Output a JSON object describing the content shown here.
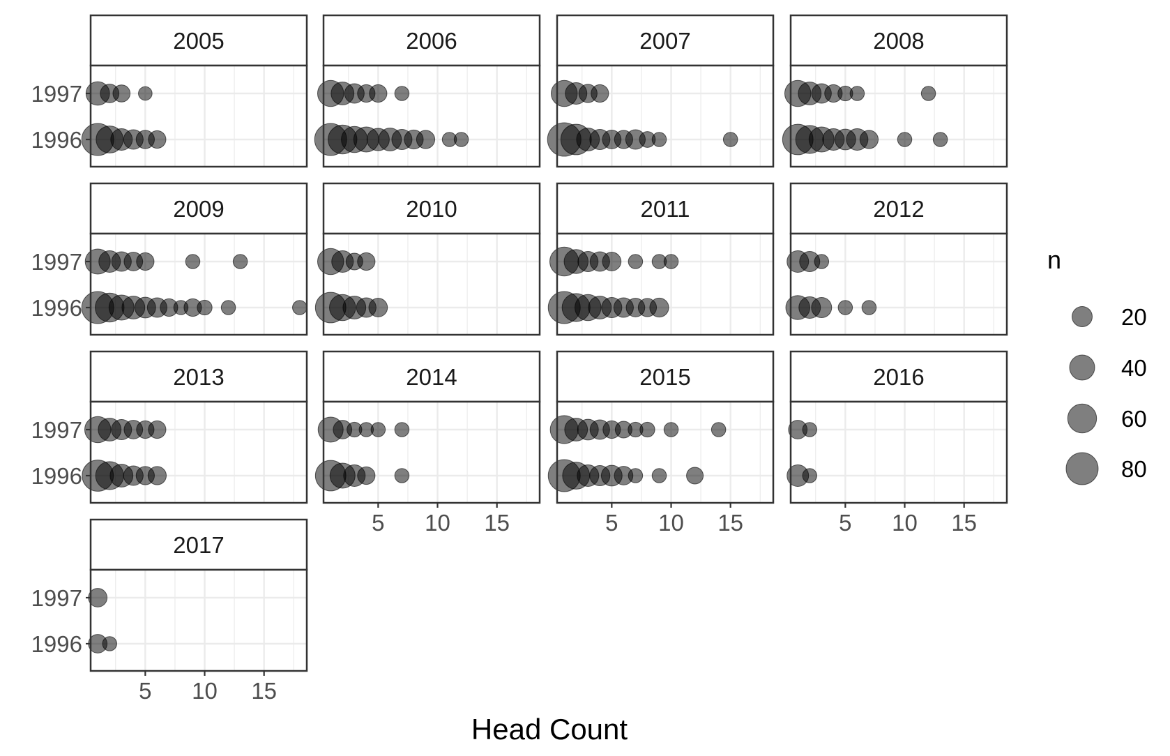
{
  "chart_data": {
    "type": "scatter",
    "xlabel": "Head Count",
    "ylabel": "",
    "x_ticks": [
      5,
      10,
      15
    ],
    "xlim": [
      0.4,
      18.6
    ],
    "y_categories": [
      "1996",
      "1997"
    ],
    "grid": true,
    "legend": {
      "title": "n",
      "placement": "right",
      "sizes": [
        20,
        40,
        60,
        80
      ],
      "labels": [
        "20",
        "40",
        "60",
        "80"
      ]
    },
    "colors": {
      "point": "#000000",
      "point_opacity": 0.5,
      "strip_bg": "#ffffff",
      "panel_border": "#333333",
      "grid": "#ebebeb"
    },
    "panels": [
      {
        "facet": "2005",
        "points": [
          {
            "y": "1997",
            "x": 1,
            "n": 33
          },
          {
            "y": "1997",
            "x": 2,
            "n": 15
          },
          {
            "y": "1997",
            "x": 3,
            "n": 11
          },
          {
            "y": "1997",
            "x": 5,
            "n": 4
          },
          {
            "y": "1996",
            "x": 1,
            "n": 80
          },
          {
            "y": "1996",
            "x": 2,
            "n": 50
          },
          {
            "y": "1996",
            "x": 3,
            "n": 25
          },
          {
            "y": "1996",
            "x": 4,
            "n": 18
          },
          {
            "y": "1996",
            "x": 5,
            "n": 14
          },
          {
            "y": "1996",
            "x": 6,
            "n": 12
          }
        ]
      },
      {
        "facet": "2006",
        "points": [
          {
            "y": "1997",
            "x": 1,
            "n": 45
          },
          {
            "y": "1997",
            "x": 2,
            "n": 30
          },
          {
            "y": "1997",
            "x": 3,
            "n": 18
          },
          {
            "y": "1997",
            "x": 4,
            "n": 12
          },
          {
            "y": "1997",
            "x": 5,
            "n": 12
          },
          {
            "y": "1997",
            "x": 7,
            "n": 5
          },
          {
            "y": "1996",
            "x": 1,
            "n": 80
          },
          {
            "y": "1996",
            "x": 2,
            "n": 60
          },
          {
            "y": "1996",
            "x": 3,
            "n": 45
          },
          {
            "y": "1996",
            "x": 4,
            "n": 40
          },
          {
            "y": "1996",
            "x": 5,
            "n": 28
          },
          {
            "y": "1996",
            "x": 6,
            "n": 30
          },
          {
            "y": "1996",
            "x": 7,
            "n": 20
          },
          {
            "y": "1996",
            "x": 8,
            "n": 16
          },
          {
            "y": "1996",
            "x": 9,
            "n": 14
          },
          {
            "y": "1996",
            "x": 11,
            "n": 5
          },
          {
            "y": "1996",
            "x": 12,
            "n": 5
          }
        ]
      },
      {
        "facet": "2007",
        "points": [
          {
            "y": "1997",
            "x": 1,
            "n": 45
          },
          {
            "y": "1997",
            "x": 2,
            "n": 25
          },
          {
            "y": "1997",
            "x": 3,
            "n": 14
          },
          {
            "y": "1997",
            "x": 4,
            "n": 12
          },
          {
            "y": "1996",
            "x": 1,
            "n": 90
          },
          {
            "y": "1996",
            "x": 2,
            "n": 70
          },
          {
            "y": "1996",
            "x": 3,
            "n": 30
          },
          {
            "y": "1996",
            "x": 4,
            "n": 20
          },
          {
            "y": "1996",
            "x": 5,
            "n": 15
          },
          {
            "y": "1996",
            "x": 6,
            "n": 14
          },
          {
            "y": "1996",
            "x": 7,
            "n": 18
          },
          {
            "y": "1996",
            "x": 8,
            "n": 8
          },
          {
            "y": "1996",
            "x": 9,
            "n": 5
          },
          {
            "y": "1996",
            "x": 15,
            "n": 5
          }
        ]
      },
      {
        "facet": "2008",
        "points": [
          {
            "y": "1997",
            "x": 1,
            "n": 45
          },
          {
            "y": "1997",
            "x": 2,
            "n": 30
          },
          {
            "y": "1997",
            "x": 3,
            "n": 18
          },
          {
            "y": "1997",
            "x": 4,
            "n": 12
          },
          {
            "y": "1997",
            "x": 5,
            "n": 6
          },
          {
            "y": "1997",
            "x": 6,
            "n": 5
          },
          {
            "y": "1997",
            "x": 12,
            "n": 5
          },
          {
            "y": "1996",
            "x": 1,
            "n": 70
          },
          {
            "y": "1996",
            "x": 2,
            "n": 55
          },
          {
            "y": "1996",
            "x": 3,
            "n": 40
          },
          {
            "y": "1996",
            "x": 4,
            "n": 25
          },
          {
            "y": "1996",
            "x": 5,
            "n": 22
          },
          {
            "y": "1996",
            "x": 6,
            "n": 25
          },
          {
            "y": "1996",
            "x": 7,
            "n": 14
          },
          {
            "y": "1996",
            "x": 10,
            "n": 5
          },
          {
            "y": "1996",
            "x": 13,
            "n": 5
          }
        ]
      },
      {
        "facet": "2009",
        "points": [
          {
            "y": "1997",
            "x": 1,
            "n": 40
          },
          {
            "y": "1997",
            "x": 2,
            "n": 25
          },
          {
            "y": "1997",
            "x": 3,
            "n": 18
          },
          {
            "y": "1997",
            "x": 4,
            "n": 15
          },
          {
            "y": "1997",
            "x": 5,
            "n": 12
          },
          {
            "y": "1997",
            "x": 9,
            "n": 5
          },
          {
            "y": "1997",
            "x": 13,
            "n": 5
          },
          {
            "y": "1996",
            "x": 1,
            "n": 80
          },
          {
            "y": "1996",
            "x": 2,
            "n": 60
          },
          {
            "y": "1996",
            "x": 3,
            "n": 40
          },
          {
            "y": "1996",
            "x": 4,
            "n": 30
          },
          {
            "y": "1996",
            "x": 5,
            "n": 22
          },
          {
            "y": "1996",
            "x": 6,
            "n": 18
          },
          {
            "y": "1996",
            "x": 7,
            "n": 12
          },
          {
            "y": "1996",
            "x": 8,
            "n": 5
          },
          {
            "y": "1996",
            "x": 9,
            "n": 12
          },
          {
            "y": "1996",
            "x": 10,
            "n": 6
          },
          {
            "y": "1996",
            "x": 12,
            "n": 5
          },
          {
            "y": "1996",
            "x": 18,
            "n": 5
          }
        ]
      },
      {
        "facet": "2010",
        "points": [
          {
            "y": "1997",
            "x": 1,
            "n": 45
          },
          {
            "y": "1997",
            "x": 2,
            "n": 25
          },
          {
            "y": "1997",
            "x": 3,
            "n": 10
          },
          {
            "y": "1997",
            "x": 4,
            "n": 12
          },
          {
            "y": "1996",
            "x": 1,
            "n": 70
          },
          {
            "y": "1996",
            "x": 2,
            "n": 45
          },
          {
            "y": "1996",
            "x": 3,
            "n": 30
          },
          {
            "y": "1996",
            "x": 4,
            "n": 18
          },
          {
            "y": "1996",
            "x": 5,
            "n": 15
          }
        ]
      },
      {
        "facet": "2011",
        "points": [
          {
            "y": "1997",
            "x": 1,
            "n": 60
          },
          {
            "y": "1997",
            "x": 2,
            "n": 35
          },
          {
            "y": "1997",
            "x": 3,
            "n": 20
          },
          {
            "y": "1997",
            "x": 4,
            "n": 18
          },
          {
            "y": "1997",
            "x": 5,
            "n": 15
          },
          {
            "y": "1997",
            "x": 7,
            "n": 5
          },
          {
            "y": "1997",
            "x": 9,
            "n": 5
          },
          {
            "y": "1997",
            "x": 10,
            "n": 5
          },
          {
            "y": "1996",
            "x": 1,
            "n": 80
          },
          {
            "y": "1996",
            "x": 2,
            "n": 55
          },
          {
            "y": "1996",
            "x": 3,
            "n": 45
          },
          {
            "y": "1996",
            "x": 4,
            "n": 30
          },
          {
            "y": "1996",
            "x": 5,
            "n": 20
          },
          {
            "y": "1996",
            "x": 6,
            "n": 18
          },
          {
            "y": "1996",
            "x": 7,
            "n": 15
          },
          {
            "y": "1996",
            "x": 8,
            "n": 14
          },
          {
            "y": "1996",
            "x": 9,
            "n": 16
          }
        ]
      },
      {
        "facet": "2012",
        "points": [
          {
            "y": "1997",
            "x": 1,
            "n": 25
          },
          {
            "y": "1997",
            "x": 2,
            "n": 20
          },
          {
            "y": "1997",
            "x": 3,
            "n": 5
          },
          {
            "y": "1996",
            "x": 1,
            "n": 35
          },
          {
            "y": "1996",
            "x": 2,
            "n": 25
          },
          {
            "y": "1996",
            "x": 3,
            "n": 20
          },
          {
            "y": "1996",
            "x": 5,
            "n": 5
          },
          {
            "y": "1996",
            "x": 7,
            "n": 5
          }
        ]
      },
      {
        "facet": "2013",
        "points": [
          {
            "y": "1997",
            "x": 1,
            "n": 45
          },
          {
            "y": "1997",
            "x": 2,
            "n": 30
          },
          {
            "y": "1997",
            "x": 3,
            "n": 20
          },
          {
            "y": "1997",
            "x": 4,
            "n": 15
          },
          {
            "y": "1997",
            "x": 5,
            "n": 12
          },
          {
            "y": "1997",
            "x": 6,
            "n": 12
          },
          {
            "y": "1996",
            "x": 1,
            "n": 75
          },
          {
            "y": "1996",
            "x": 2,
            "n": 55
          },
          {
            "y": "1996",
            "x": 3,
            "n": 30
          },
          {
            "y": "1996",
            "x": 4,
            "n": 18
          },
          {
            "y": "1996",
            "x": 5,
            "n": 14
          },
          {
            "y": "1996",
            "x": 6,
            "n": 14
          }
        ]
      },
      {
        "facet": "2014",
        "points": [
          {
            "y": "1997",
            "x": 1,
            "n": 40
          },
          {
            "y": "1997",
            "x": 2,
            "n": 15
          },
          {
            "y": "1997",
            "x": 3,
            "n": 6
          },
          {
            "y": "1997",
            "x": 4,
            "n": 5
          },
          {
            "y": "1997",
            "x": 5,
            "n": 5
          },
          {
            "y": "1997",
            "x": 7,
            "n": 5
          },
          {
            "y": "1996",
            "x": 1,
            "n": 70
          },
          {
            "y": "1996",
            "x": 2,
            "n": 40
          },
          {
            "y": "1996",
            "x": 3,
            "n": 25
          },
          {
            "y": "1996",
            "x": 4,
            "n": 12
          },
          {
            "y": "1996",
            "x": 7,
            "n": 5
          }
        ]
      },
      {
        "facet": "2015",
        "points": [
          {
            "y": "1997",
            "x": 1,
            "n": 55
          },
          {
            "y": "1997",
            "x": 2,
            "n": 30
          },
          {
            "y": "1997",
            "x": 3,
            "n": 22
          },
          {
            "y": "1997",
            "x": 4,
            "n": 18
          },
          {
            "y": "1997",
            "x": 5,
            "n": 12
          },
          {
            "y": "1997",
            "x": 6,
            "n": 10
          },
          {
            "y": "1997",
            "x": 7,
            "n": 6
          },
          {
            "y": "1997",
            "x": 8,
            "n": 6
          },
          {
            "y": "1997",
            "x": 10,
            "n": 5
          },
          {
            "y": "1997",
            "x": 14,
            "n": 5
          },
          {
            "y": "1996",
            "x": 1,
            "n": 80
          },
          {
            "y": "1996",
            "x": 2,
            "n": 50
          },
          {
            "y": "1996",
            "x": 3,
            "n": 25
          },
          {
            "y": "1996",
            "x": 4,
            "n": 20
          },
          {
            "y": "1996",
            "x": 5,
            "n": 22
          },
          {
            "y": "1996",
            "x": 6,
            "n": 15
          },
          {
            "y": "1996",
            "x": 7,
            "n": 5
          },
          {
            "y": "1996",
            "x": 9,
            "n": 5
          },
          {
            "y": "1996",
            "x": 12,
            "n": 10
          }
        ]
      },
      {
        "facet": "2016",
        "points": [
          {
            "y": "1997",
            "x": 1,
            "n": 15
          },
          {
            "y": "1997",
            "x": 2,
            "n": 5
          },
          {
            "y": "1996",
            "x": 1,
            "n": 25
          },
          {
            "y": "1996",
            "x": 2,
            "n": 5
          }
        ]
      },
      {
        "facet": "2017",
        "points": [
          {
            "y": "1997",
            "x": 1,
            "n": 15
          },
          {
            "y": "1996",
            "x": 1,
            "n": 15
          },
          {
            "y": "1996",
            "x": 2,
            "n": 5
          }
        ]
      }
    ]
  }
}
